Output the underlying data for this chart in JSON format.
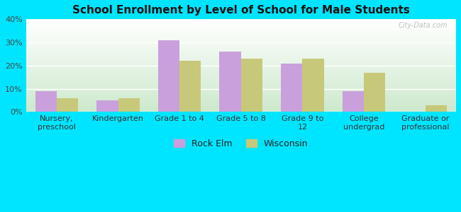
{
  "title": "School Enrollment by Level of School for Male Students",
  "categories": [
    "Nursery,\npreschool",
    "Kindergarten",
    "Grade 1 to 4",
    "Grade 5 to 8",
    "Grade 9 to\n12",
    "College\nundergrad",
    "Graduate or\nprofessional"
  ],
  "rock_elm": [
    9,
    5,
    31,
    26,
    21,
    9,
    0
  ],
  "wisconsin": [
    6,
    6,
    22,
    23,
    23,
    17,
    3
  ],
  "rock_elm_color": "#c9a0dc",
  "wisconsin_color": "#c8c87a",
  "fig_bg_color": "#00e5ff",
  "plot_bg_top": "#ffffff",
  "plot_bg_bottom": "#cce8cc",
  "ylim": [
    0,
    40
  ],
  "yticks": [
    0,
    10,
    20,
    30,
    40
  ],
  "bar_width": 0.35,
  "legend_labels": [
    "Rock Elm",
    "Wisconsin"
  ],
  "title_fontsize": 11,
  "tick_fontsize": 8,
  "watermark": "City-Data.com"
}
